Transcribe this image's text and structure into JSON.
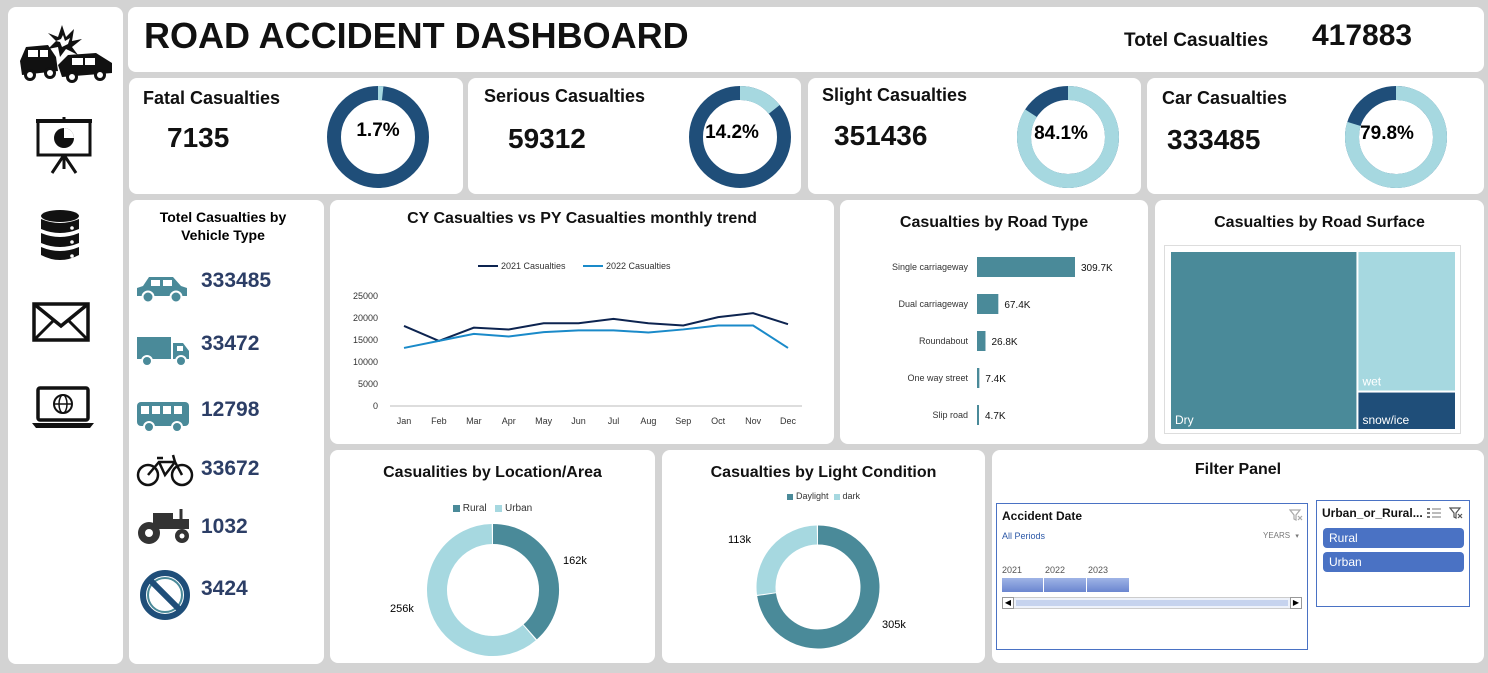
{
  "title": "ROAD ACCIDENT DASHBOARD",
  "total": {
    "label": "Totel Casualties",
    "value": "417883"
  },
  "kpis": [
    {
      "title": "Fatal Casualties",
      "value": "7135",
      "pct_label": "1.7%",
      "pct": 1.7
    },
    {
      "title": "Serious Casualties",
      "value": "59312",
      "pct_label": "14.2%",
      "pct": 14.2
    },
    {
      "title": "Slight Casualties",
      "value": "351436",
      "pct_label": "84.1%",
      "pct": 84.1
    },
    {
      "title": "Car Casualties",
      "value": "333485",
      "pct_label": "79.8%",
      "pct": 79.8
    }
  ],
  "sidebar": {
    "icons": [
      "car-crash-icon",
      "presentation-icon",
      "database-icon",
      "mail-icon",
      "laptop-globe-icon"
    ]
  },
  "vehicle": {
    "title": "Totel  Casualties by Vehicle Type",
    "items": [
      {
        "icon": "car-icon",
        "value": "333485"
      },
      {
        "icon": "truck-icon",
        "value": "33472"
      },
      {
        "icon": "bus-icon",
        "value": "12798"
      },
      {
        "icon": "bicycle-icon",
        "value": "33672"
      },
      {
        "icon": "tractor-icon",
        "value": "1032"
      },
      {
        "icon": "prohibited-icon",
        "value": "3424"
      }
    ]
  },
  "colors": {
    "dark": "#1f4e79",
    "light": "#a6d8e0",
    "teal": "#4a8a99",
    "line2021": "#0d2450",
    "line2022": "#1a8ac9",
    "slicer": "#4a72c4"
  },
  "chart_data": [
    {
      "type": "line",
      "title": "CY Casualties vs PY Casualties monthly trend",
      "categories": [
        "Jan",
        "Feb",
        "Mar",
        "Apr",
        "May",
        "Jun",
        "Jul",
        "Aug",
        "Sep",
        "Oct",
        "Nov",
        "Dec"
      ],
      "series": [
        {
          "name": "2021 Casualties",
          "values": [
            18200,
            14800,
            17800,
            17400,
            18800,
            18800,
            19800,
            18800,
            18300,
            20200,
            21100,
            18600
          ]
        },
        {
          "name": "2022 Casualties",
          "values": [
            13200,
            14800,
            16400,
            15800,
            16800,
            17200,
            17200,
            16700,
            17400,
            18300,
            18300,
            13200
          ]
        }
      ],
      "ylim": [
        0,
        25000
      ],
      "yticks": [
        "0",
        "5000",
        "10000",
        "15000",
        "20000",
        "25000"
      ],
      "grid": false,
      "legend": "top"
    },
    {
      "type": "bar",
      "orientation": "horizontal",
      "title": "Casualties by Road Type",
      "categories": [
        "Single carriageway",
        "Dual carriageway",
        "Roundabout",
        "One way street",
        "Slip road"
      ],
      "values": [
        309700,
        67400,
        26800,
        7400,
        4700
      ],
      "labels": [
        "309.7K",
        "67.4K",
        "26.8K",
        "7.4K",
        "4.7K"
      ]
    },
    {
      "type": "treemap",
      "title": "Casualties by Road Surface",
      "items": [
        {
          "name": "Dry",
          "share": 0.66
        },
        {
          "name": "wet",
          "share": 0.27
        },
        {
          "name": "snow/ice",
          "share": 0.07
        }
      ]
    },
    {
      "type": "pie",
      "title": "Casualities by Location/Area",
      "donut": true,
      "legend": "top",
      "slices": [
        {
          "name": "Rural",
          "value": 162,
          "label": "162k"
        },
        {
          "name": "Urban",
          "value": 256,
          "label": "256k"
        }
      ]
    },
    {
      "type": "pie",
      "title": "Casualties by Light Condition",
      "donut": true,
      "legend": "top",
      "slices": [
        {
          "name": "Daylight",
          "value": 305,
          "label": "305k"
        },
        {
          "name": "dark",
          "value": 113,
          "label": "113k"
        }
      ]
    }
  ],
  "filter": {
    "title": "Filter Panel",
    "date_slicer": {
      "title": "Accident Date",
      "period": "All Periods",
      "level": "YEARS",
      "years": [
        "2021",
        "2022",
        "2023"
      ]
    },
    "area_slicer": {
      "title": "Urban_or_Rural...",
      "options": [
        "Rural",
        "Urban"
      ]
    }
  }
}
